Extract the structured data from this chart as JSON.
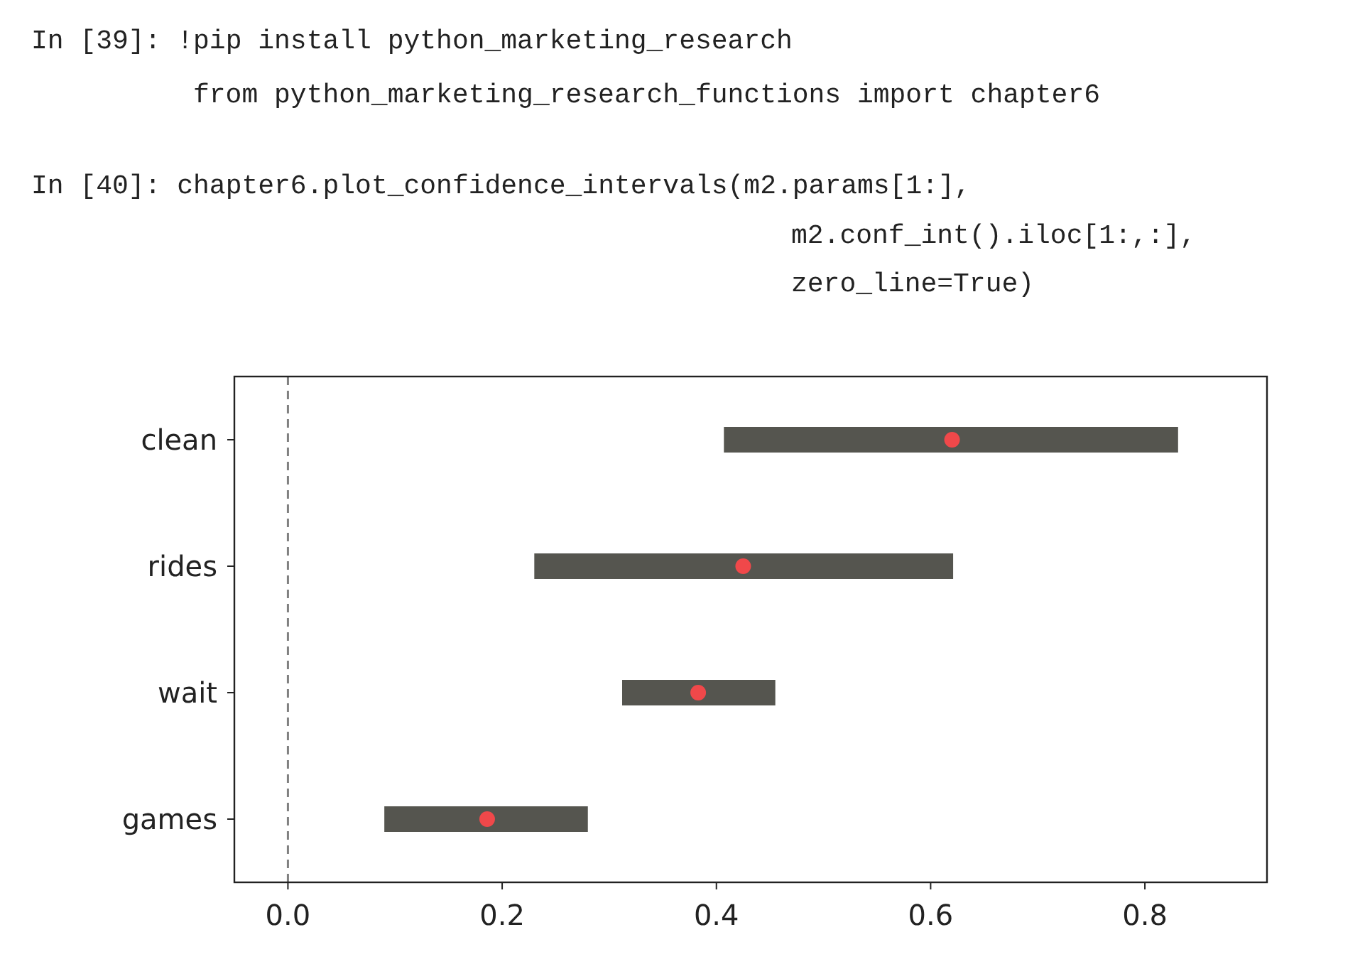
{
  "chart_data": {
    "type": "bar",
    "orientation": "horizontal",
    "categories": [
      "clean",
      "rides",
      "wait",
      "games"
    ],
    "series": [
      {
        "type": "bar",
        "color": "#55554f",
        "base": [
          0.407,
          0.23,
          0.312,
          0.09
        ],
        "values": [
          0.424,
          0.391,
          0.143,
          0.19
        ]
      },
      {
        "type": "scatter",
        "color": "#f0484a",
        "x": [
          "clean",
          "rides",
          "wait",
          "games"
        ],
        "values": [
          0.62,
          0.425,
          0.383,
          0.186
        ]
      }
    ],
    "xlim": [
      -0.05,
      0.914
    ],
    "xticks": [
      {
        "value": 0,
        "label": "0.0"
      },
      0.2,
      0.4,
      0.6,
      0.8
    ],
    "ref_lines": [
      {
        "axis": "x",
        "value": 0,
        "color": "#808080",
        "line_style": "dashed"
      }
    ],
    "grid": false,
    "marker": "circle",
    "annotations": [
      "In [39]: !pip install python_marketing_research",
      "from python_marketing_research_functions import chapter6",
      "In [40]: chapter6.plot_confidence_intervals(m2.params[1:],",
      "m2.conf_int().iloc[1:,:],",
      "zero_line=True)"
    ]
  }
}
